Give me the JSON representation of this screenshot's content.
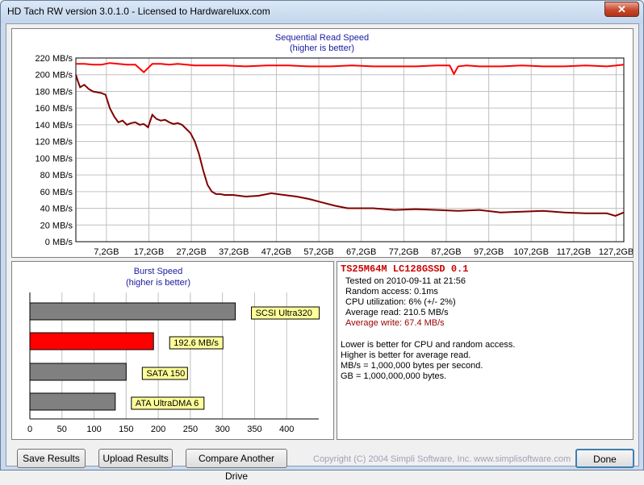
{
  "window": {
    "title": "HD Tach RW version 3.0.1.0 - Licensed to Hardwareluxx.com",
    "close_label": "✕"
  },
  "chart_data": [
    {
      "type": "line",
      "title": "Sequential Read Speed",
      "subtitle": "(higher is better)",
      "ylabel": "",
      "xlabel": "",
      "ylim": [
        0,
        220
      ],
      "y_ticks": [
        "0 MB/s",
        "20 MB/s",
        "40 MB/s",
        "60 MB/s",
        "80 MB/s",
        "100 MB/s",
        "120 MB/s",
        "140 MB/s",
        "160 MB/s",
        "180 MB/s",
        "200 MB/s",
        "220 MB/s"
      ],
      "x_ticks": [
        "7,2GB",
        "17,2GB",
        "27,2GB",
        "37,2GB",
        "47,2GB",
        "57,2GB",
        "67,2GB",
        "77,2GB",
        "87,2GB",
        "97,2GB",
        "107,2GB",
        "117,2GB",
        "127,2GB"
      ],
      "grid": true,
      "series": [
        {
          "color": "#ff0000",
          "x": [
            0,
            2,
            4,
            6,
            8,
            10,
            12,
            14,
            16,
            18,
            20,
            22,
            24,
            26,
            28,
            30,
            35,
            40,
            45,
            50,
            55,
            60,
            65,
            70,
            75,
            80,
            85,
            88,
            89,
            90,
            92,
            95,
            100,
            105,
            110,
            115,
            120,
            125,
            127.2,
            129
          ],
          "values": [
            213,
            213,
            212,
            212,
            214,
            213,
            212,
            212,
            203,
            213,
            213,
            212,
            213,
            212,
            211,
            211,
            211,
            210,
            211,
            211,
            210,
            210,
            211,
            210,
            210,
            210,
            211,
            211,
            201,
            210,
            211,
            210,
            210,
            211,
            210,
            210,
            211,
            210,
            211,
            212
          ]
        },
        {
          "color": "#800000",
          "x": [
            0,
            0.5,
            1,
            2,
            3,
            4,
            5,
            6,
            7,
            8,
            9,
            10,
            11,
            12,
            13,
            14,
            15,
            16,
            17,
            18,
            19,
            20,
            21,
            22,
            23,
            24,
            25,
            26,
            27,
            28,
            29,
            30,
            31,
            32,
            33,
            34,
            35,
            37,
            40,
            43,
            46,
            49,
            52,
            55,
            58,
            61,
            64,
            67,
            70,
            75,
            80,
            85,
            90,
            95,
            100,
            105,
            110,
            115,
            120,
            125,
            127,
            129
          ],
          "values": [
            200,
            192,
            185,
            188,
            183,
            180,
            179,
            178,
            176,
            160,
            150,
            143,
            145,
            140,
            142,
            143,
            140,
            141,
            137,
            152,
            147,
            145,
            146,
            143,
            141,
            142,
            140,
            135,
            130,
            120,
            105,
            85,
            68,
            60,
            57,
            57,
            56,
            56,
            54,
            55,
            58,
            56,
            54,
            51,
            47,
            43,
            40,
            40,
            40,
            38,
            39,
            38,
            37,
            38,
            35,
            36,
            37,
            35,
            34,
            34,
            31,
            35
          ]
        }
      ]
    },
    {
      "type": "bar",
      "title": "Burst Speed",
      "subtitle": "(higher is better)",
      "orientation": "horizontal",
      "xlim": [
        0,
        450
      ],
      "x_ticks": [
        "0",
        "50",
        "100",
        "150",
        "200",
        "250",
        "300",
        "350",
        "400"
      ],
      "grid": true,
      "categories": [
        "SCSI Ultra320",
        "192.6 MB/s",
        "SATA 150",
        "ATA UltraDMA 6"
      ],
      "values": [
        320,
        192.6,
        150,
        133
      ],
      "colors": [
        "#808080",
        "#ff0000",
        "#808080",
        "#808080"
      ],
      "label_colors": "#ffff99"
    }
  ],
  "info": {
    "drive": "TS25M64M LC128GSSD 0.1",
    "tested_on": "Tested on 2010-09-11 at 21:56",
    "random_access": "Random access: 0.1ms",
    "cpu": "CPU utilization: 6% (+/- 2%)",
    "avg_read": "Average read: 210.5 MB/s",
    "avg_write": "Average write: 67.4 MB/s",
    "note1": "Lower is better for CPU and random access.",
    "note2": "Higher is better for average read.",
    "note3": "MB/s = 1,000,000 bytes per second.",
    "note4": "GB = 1,000,000,000 bytes.",
    "drive_color": "#cc0000",
    "write_color": "#990000"
  },
  "buttons": {
    "save": "Save Results",
    "upload": "Upload Results",
    "compare": "Compare Another Drive",
    "done": "Done"
  },
  "copyright": "Copyright (C) 2004 Simpli Software, Inc. www.simplisoftware.com"
}
